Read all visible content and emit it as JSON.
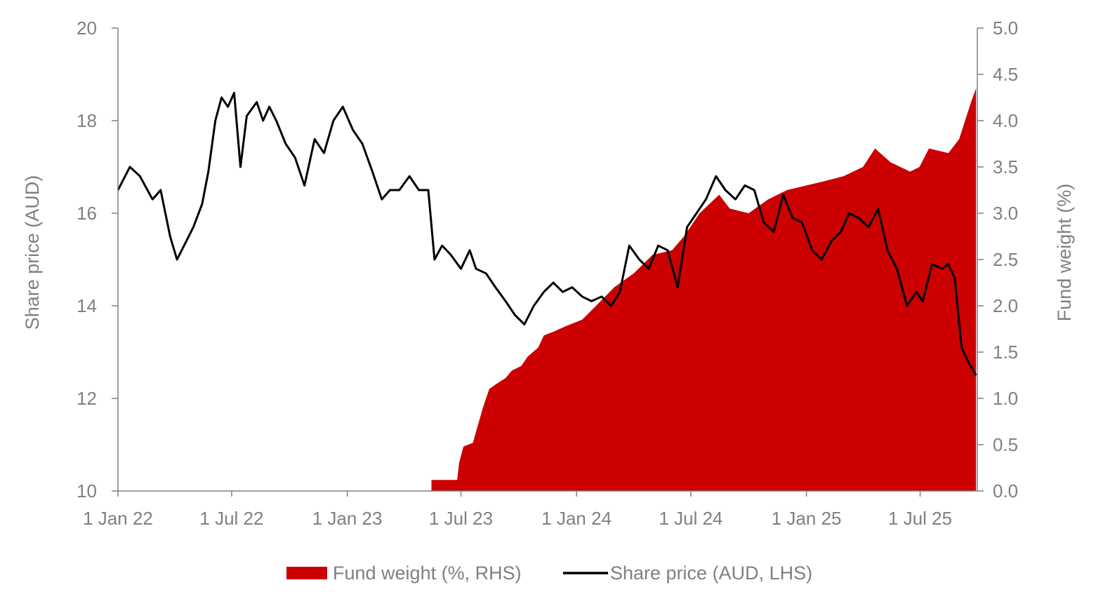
{
  "chart_data": {
    "type": "line",
    "title": "",
    "x_axis": {
      "tick_labels": [
        "1 Jan 22",
        "1 Jul 22",
        "1 Jan 23",
        "1 Jul 23",
        "1 Jan 24",
        "1 Jul 24",
        "1 Jan 25",
        "1 Jul 25"
      ],
      "tick_dates": [
        "2022-01-01",
        "2022-07-01",
        "2023-01-01",
        "2023-07-01",
        "2024-01-01",
        "2024-07-01",
        "2025-01-01",
        "2025-07-01"
      ],
      "range": [
        "2022-01-01",
        "2025-09-30"
      ]
    },
    "left_axis": {
      "label": "Share price (AUD)",
      "range": [
        10,
        20
      ],
      "tick_labels": [
        "10",
        "12",
        "14",
        "16",
        "18",
        "20"
      ],
      "tick_values": [
        10,
        12,
        14,
        16,
        18,
        20
      ]
    },
    "right_axis": {
      "label": "Fund weight (%)",
      "range": [
        0,
        5
      ],
      "tick_labels": [
        "0.0",
        "0.5",
        "1.0",
        "1.5",
        "2.0",
        "2.5",
        "3.0",
        "3.5",
        "4.0",
        "4.5",
        "5.0"
      ],
      "tick_values": [
        0,
        0.5,
        1,
        1.5,
        2,
        2.5,
        3,
        3.5,
        4,
        4.5,
        5
      ]
    },
    "grid": false,
    "legend": {
      "placement": "bottom",
      "entries": [
        "Fund weight (%, RHS)",
        "Share price (AUD, LHS)"
      ]
    },
    "series": [
      {
        "name": "Fund weight (%, RHS)",
        "type": "area",
        "axis": "right",
        "color": "#cc0000",
        "x": [
          "2023-05-15",
          "2023-06-25",
          "2023-06-28",
          "2023-07-05",
          "2023-07-20",
          "2023-08-05",
          "2023-08-15",
          "2023-08-25",
          "2023-09-10",
          "2023-09-20",
          "2023-10-05",
          "2023-10-15",
          "2023-11-01",
          "2023-11-10",
          "2023-11-25",
          "2023-12-15",
          "2024-01-10",
          "2024-02-01",
          "2024-03-01",
          "2024-04-01",
          "2024-05-01",
          "2024-06-01",
          "2024-06-20",
          "2024-07-15",
          "2024-08-15",
          "2024-09-01",
          "2024-10-01",
          "2024-11-01",
          "2024-12-01",
          "2025-01-01",
          "2025-02-01",
          "2025-03-01",
          "2025-04-01",
          "2025-04-20",
          "2025-05-15",
          "2025-06-15",
          "2025-06-30",
          "2025-07-15",
          "2025-08-15",
          "2025-09-01",
          "2025-09-20",
          "2025-09-28"
        ],
        "values": [
          0.12,
          0.12,
          0.3,
          0.48,
          0.52,
          0.9,
          1.1,
          1.15,
          1.22,
          1.3,
          1.35,
          1.45,
          1.55,
          1.68,
          1.72,
          1.78,
          1.85,
          2.0,
          2.2,
          2.35,
          2.55,
          2.6,
          2.75,
          3.0,
          3.2,
          3.05,
          3.0,
          3.15,
          3.25,
          3.3,
          3.35,
          3.4,
          3.5,
          3.7,
          3.55,
          3.45,
          3.5,
          3.7,
          3.65,
          3.8,
          4.2,
          4.35
        ]
      },
      {
        "name": "Share price (AUD, LHS)",
        "type": "line",
        "axis": "left",
        "color": "#000000",
        "x": [
          "2022-01-01",
          "2022-01-20",
          "2022-02-05",
          "2022-02-25",
          "2022-03-10",
          "2022-03-25",
          "2022-04-05",
          "2022-04-20",
          "2022-05-01",
          "2022-05-15",
          "2022-05-25",
          "2022-06-05",
          "2022-06-15",
          "2022-06-25",
          "2022-07-05",
          "2022-07-15",
          "2022-07-25",
          "2022-08-10",
          "2022-08-20",
          "2022-08-30",
          "2022-09-10",
          "2022-09-25",
          "2022-10-10",
          "2022-10-25",
          "2022-11-10",
          "2022-11-25",
          "2022-12-10",
          "2022-12-25",
          "2023-01-10",
          "2023-01-25",
          "2023-02-10",
          "2023-02-25",
          "2023-03-10",
          "2023-03-25",
          "2023-04-10",
          "2023-04-25",
          "2023-05-10",
          "2023-05-20",
          "2023-06-01",
          "2023-06-15",
          "2023-07-01",
          "2023-07-15",
          "2023-07-25",
          "2023-08-10",
          "2023-08-25",
          "2023-09-10",
          "2023-09-25",
          "2023-10-10",
          "2023-10-25",
          "2023-11-10",
          "2023-11-25",
          "2023-12-10",
          "2023-12-25",
          "2024-01-10",
          "2024-01-25",
          "2024-02-10",
          "2024-02-25",
          "2024-03-10",
          "2024-03-25",
          "2024-04-10",
          "2024-04-25",
          "2024-05-10",
          "2024-05-25",
          "2024-06-10",
          "2024-06-25",
          "2024-07-10",
          "2024-07-25",
          "2024-08-10",
          "2024-08-25",
          "2024-09-10",
          "2024-09-25",
          "2024-10-10",
          "2024-10-25",
          "2024-11-10",
          "2024-11-25",
          "2024-12-10",
          "2024-12-25",
          "2025-01-10",
          "2025-01-25",
          "2025-02-10",
          "2025-02-25",
          "2025-03-10",
          "2025-03-25",
          "2025-04-10",
          "2025-04-25",
          "2025-05-10",
          "2025-05-25",
          "2025-06-10",
          "2025-06-25",
          "2025-07-05",
          "2025-07-20",
          "2025-08-05",
          "2025-08-15",
          "2025-08-25",
          "2025-09-05",
          "2025-09-15",
          "2025-09-28"
        ],
        "values": [
          16.5,
          17.0,
          16.8,
          16.3,
          16.5,
          15.5,
          15.0,
          15.4,
          15.7,
          16.2,
          16.9,
          18.0,
          18.5,
          18.3,
          18.6,
          17.0,
          18.1,
          18.4,
          18.0,
          18.3,
          18.0,
          17.5,
          17.2,
          16.6,
          17.6,
          17.3,
          18.0,
          18.3,
          17.8,
          17.5,
          16.9,
          16.3,
          16.5,
          16.5,
          16.8,
          16.5,
          16.5,
          15.0,
          15.3,
          15.1,
          14.8,
          15.2,
          14.8,
          14.7,
          14.4,
          14.1,
          13.8,
          13.6,
          14.0,
          14.3,
          14.5,
          14.3,
          14.4,
          14.2,
          14.1,
          14.2,
          14.0,
          14.3,
          15.3,
          15.0,
          14.8,
          15.3,
          15.2,
          14.4,
          15.7,
          16.0,
          16.3,
          16.8,
          16.5,
          16.3,
          16.6,
          16.5,
          15.8,
          15.6,
          16.4,
          15.9,
          15.8,
          15.2,
          15.0,
          15.4,
          15.6,
          16.0,
          15.9,
          15.7,
          16.1,
          15.2,
          14.8,
          14.0,
          14.3,
          14.1,
          14.9,
          14.8,
          14.9,
          14.6,
          13.1,
          12.8,
          12.5
        ]
      }
    ]
  }
}
